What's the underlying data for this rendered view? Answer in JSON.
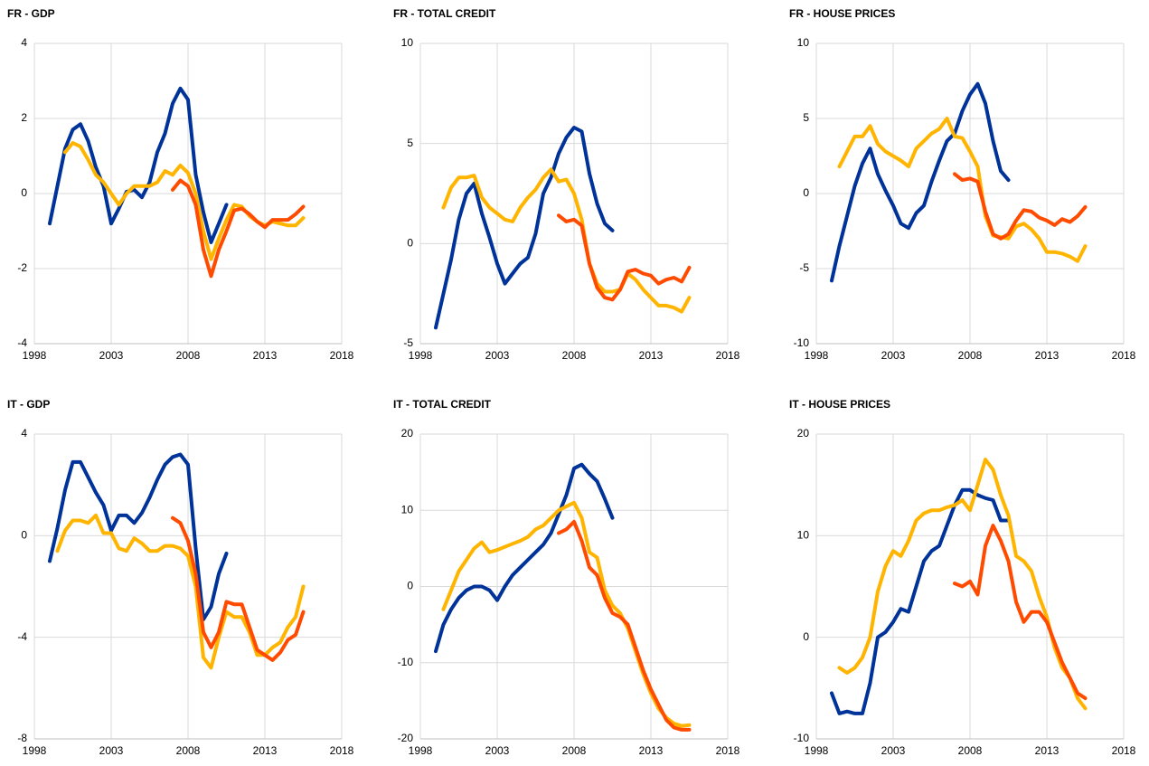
{
  "chart_data": [
    {
      "type": "line",
      "title": "FR - GDP",
      "x": [
        1999,
        1999.5,
        2000,
        2000.5,
        2001,
        2001.5,
        2002,
        2002.5,
        2003,
        2003.5,
        2004,
        2004.5,
        2005,
        2005.5,
        2006,
        2006.5,
        2007,
        2007.5,
        2008,
        2008.5,
        2009,
        2009.5,
        2010,
        2010.5,
        2011,
        2011.5,
        2012,
        2012.5,
        2013,
        2013.5,
        2014,
        2014.5,
        2015,
        2015.5
      ],
      "xlim": [
        1998,
        2018
      ],
      "xticks": [
        1998,
        2003,
        2008,
        2013,
        2018
      ],
      "ylim": [
        -4,
        4
      ],
      "yticks": [
        -4,
        -2,
        0,
        2,
        4
      ],
      "grid": true,
      "series": [
        {
          "color": "#003399",
          "values": [
            -0.8,
            0.2,
            1.2,
            1.7,
            1.85,
            1.4,
            0.7,
            0.2,
            -0.8,
            -0.4,
            0.05,
            0.1,
            -0.1,
            0.3,
            1.1,
            1.6,
            2.4,
            2.8,
            2.5,
            0.5,
            -0.5,
            -1.3,
            -0.8,
            -0.3,
            null,
            null,
            null,
            null,
            null,
            null,
            null,
            null,
            null,
            null
          ]
        },
        {
          "color": "#ffb400",
          "values": [
            null,
            null,
            1.1,
            1.35,
            1.25,
            0.9,
            0.5,
            0.3,
            0,
            -0.3,
            0,
            0.2,
            0.2,
            0.2,
            0.3,
            0.6,
            0.5,
            0.75,
            0.55,
            0,
            -1,
            -1.75,
            -1.2,
            -0.7,
            -0.3,
            -0.35,
            -0.6,
            -0.75,
            -0.85,
            -0.75,
            -0.8,
            -0.85,
            -0.85,
            -0.65
          ]
        },
        {
          "color": "#ff4b00",
          "values": [
            null,
            null,
            null,
            null,
            null,
            null,
            null,
            null,
            null,
            null,
            null,
            null,
            null,
            null,
            null,
            null,
            0.1,
            0.35,
            0.2,
            -0.3,
            -1.5,
            -2.2,
            -1.5,
            -1,
            -0.45,
            -0.4,
            -0.55,
            -0.75,
            -0.9,
            -0.7,
            -0.7,
            -0.7,
            -0.55,
            -0.35
          ]
        }
      ]
    },
    {
      "type": "line",
      "title": "FR - TOTAL CREDIT",
      "x": [
        1999,
        1999.5,
        2000,
        2000.5,
        2001,
        2001.5,
        2002,
        2002.5,
        2003,
        2003.5,
        2004,
        2004.5,
        2005,
        2005.5,
        2006,
        2006.5,
        2007,
        2007.5,
        2008,
        2008.5,
        2009,
        2009.5,
        2010,
        2010.5,
        2011,
        2011.5,
        2012,
        2012.5,
        2013,
        2013.5,
        2014,
        2014.5,
        2015,
        2015.5
      ],
      "xlim": [
        1998,
        2018
      ],
      "xticks": [
        1998,
        2003,
        2008,
        2013,
        2018
      ],
      "ylim": [
        -5,
        10
      ],
      "yticks": [
        -5,
        0,
        5,
        10
      ],
      "grid": true,
      "series": [
        {
          "color": "#003399",
          "values": [
            -4.2,
            -2.5,
            -0.8,
            1.2,
            2.5,
            3.0,
            1.5,
            0.3,
            -1.0,
            -2.0,
            -1.5,
            -1.0,
            -0.7,
            0.5,
            2.5,
            3.3,
            4.5,
            5.3,
            5.8,
            5.6,
            3.5,
            2.0,
            1.0,
            0.65,
            null,
            null,
            null,
            null,
            null,
            null,
            null,
            null,
            null,
            null
          ]
        },
        {
          "color": "#ffb400",
          "values": [
            null,
            1.8,
            2.8,
            3.3,
            3.3,
            3.4,
            2.3,
            1.8,
            1.5,
            1.2,
            1.1,
            1.8,
            2.3,
            2.7,
            3.3,
            3.7,
            3.1,
            3.2,
            2.5,
            1.2,
            -1.0,
            -2.0,
            -2.4,
            -2.4,
            -2.3,
            -1.5,
            -1.8,
            -2.3,
            -2.7,
            -3.1,
            -3.1,
            -3.2,
            -3.4,
            -2.7
          ]
        },
        {
          "color": "#ff4b00",
          "values": [
            null,
            null,
            null,
            null,
            null,
            null,
            null,
            null,
            null,
            null,
            null,
            null,
            null,
            null,
            null,
            null,
            1.4,
            1.1,
            1.2,
            0.9,
            -1.0,
            -2.2,
            -2.7,
            -2.8,
            -2.3,
            -1.4,
            -1.3,
            -1.5,
            -1.6,
            -2.0,
            -1.8,
            -1.7,
            -1.9,
            -1.2
          ]
        }
      ]
    },
    {
      "type": "line",
      "title": "FR - HOUSE PRICES",
      "x": [
        1999,
        1999.5,
        2000,
        2000.5,
        2001,
        2001.5,
        2002,
        2002.5,
        2003,
        2003.5,
        2004,
        2004.5,
        2005,
        2005.5,
        2006,
        2006.5,
        2007,
        2007.5,
        2008,
        2008.5,
        2009,
        2009.5,
        2010,
        2010.5,
        2011,
        2011.5,
        2012,
        2012.5,
        2013,
        2013.5,
        2014,
        2014.5,
        2015,
        2015.5
      ],
      "xlim": [
        1998,
        2018
      ],
      "xticks": [
        1998,
        2003,
        2008,
        2013,
        2018
      ],
      "ylim": [
        -10,
        10
      ],
      "yticks": [
        -10,
        -5,
        0,
        5,
        10
      ],
      "grid": true,
      "series": [
        {
          "color": "#003399",
          "values": [
            -5.8,
            -3.5,
            -1.5,
            0.5,
            2.0,
            3.0,
            1.3,
            0.2,
            -0.8,
            -2.0,
            -2.3,
            -1.3,
            -0.8,
            0.8,
            2.2,
            3.5,
            4.0,
            5.5,
            6.6,
            7.3,
            6.0,
            3.5,
            1.5,
            0.9,
            null,
            null,
            null,
            null,
            null,
            null,
            null,
            null,
            null,
            null
          ]
        },
        {
          "color": "#ffb400",
          "values": [
            null,
            1.8,
            2.8,
            3.8,
            3.8,
            4.5,
            3.3,
            2.8,
            2.5,
            2.2,
            1.8,
            3.0,
            3.5,
            4.0,
            4.3,
            5.0,
            3.8,
            3.7,
            2.8,
            1.8,
            -1.5,
            -2.8,
            -2.9,
            -3.0,
            -2.2,
            -2.0,
            -2.4,
            -3.0,
            -3.9,
            -3.9,
            -4.0,
            -4.2,
            -4.5,
            -3.5
          ]
        },
        {
          "color": "#ff4b00",
          "values": [
            null,
            null,
            null,
            null,
            null,
            null,
            null,
            null,
            null,
            null,
            null,
            null,
            null,
            null,
            null,
            null,
            1.3,
            0.9,
            1.0,
            0.8,
            -1.2,
            -2.7,
            -3.0,
            -2.7,
            -1.8,
            -1.1,
            -1.2,
            -1.6,
            -1.8,
            -2.1,
            -1.7,
            -1.9,
            -1.5,
            -0.9
          ]
        }
      ]
    },
    {
      "type": "line",
      "title": "IT - GDP",
      "x": [
        1999,
        1999.5,
        2000,
        2000.5,
        2001,
        2001.5,
        2002,
        2002.5,
        2003,
        2003.5,
        2004,
        2004.5,
        2005,
        2005.5,
        2006,
        2006.5,
        2007,
        2007.5,
        2008,
        2008.5,
        2009,
        2009.5,
        2010,
        2010.5,
        2011,
        2011.5,
        2012,
        2012.5,
        2013,
        2013.5,
        2014,
        2014.5,
        2015,
        2015.5
      ],
      "xlim": [
        1998,
        2018
      ],
      "xticks": [
        1998,
        2003,
        2008,
        2013,
        2018
      ],
      "ylim": [
        -8,
        4
      ],
      "yticks": [
        -8,
        -4,
        0,
        4
      ],
      "grid": true,
      "series": [
        {
          "color": "#003399",
          "values": [
            -1.0,
            0.3,
            1.8,
            2.9,
            2.9,
            2.3,
            1.7,
            1.2,
            0.2,
            0.8,
            0.8,
            0.5,
            0.9,
            1.5,
            2.2,
            2.8,
            3.1,
            3.2,
            2.8,
            -0.5,
            -3.3,
            -2.8,
            -1.5,
            -0.7,
            null,
            null,
            null,
            null,
            null,
            null,
            null,
            null,
            null,
            null
          ]
        },
        {
          "color": "#ffb400",
          "values": [
            null,
            -0.6,
            0.2,
            0.6,
            0.6,
            0.5,
            0.8,
            0.1,
            0.1,
            -0.5,
            -0.6,
            -0.1,
            -0.3,
            -0.6,
            -0.6,
            -0.4,
            -0.4,
            -0.5,
            -0.8,
            -2.0,
            -4.8,
            -5.2,
            -4.0,
            -3.0,
            -3.2,
            -3.2,
            -3.8,
            -4.7,
            -4.7,
            -4.4,
            -4.2,
            -3.6,
            -3.2,
            -2.0
          ]
        },
        {
          "color": "#ff4b00",
          "values": [
            null,
            null,
            null,
            null,
            null,
            null,
            null,
            null,
            null,
            null,
            null,
            null,
            null,
            null,
            null,
            null,
            0.7,
            0.5,
            -0.2,
            -1.5,
            -3.8,
            -4.4,
            -3.8,
            -2.6,
            -2.7,
            -2.7,
            -3.6,
            -4.5,
            -4.7,
            -4.9,
            -4.6,
            -4.1,
            -3.9,
            -3.0
          ]
        }
      ]
    },
    {
      "type": "line",
      "title": "IT - TOTAL CREDIT",
      "x": [
        1999,
        1999.5,
        2000,
        2000.5,
        2001,
        2001.5,
        2002,
        2002.5,
        2003,
        2003.5,
        2004,
        2004.5,
        2005,
        2005.5,
        2006,
        2006.5,
        2007,
        2007.5,
        2008,
        2008.5,
        2009,
        2009.5,
        2010,
        2010.5,
        2011,
        2011.5,
        2012,
        2012.5,
        2013,
        2013.5,
        2014,
        2014.5,
        2015,
        2015.5
      ],
      "xlim": [
        1998,
        2018
      ],
      "xticks": [
        1998,
        2003,
        2008,
        2013,
        2018
      ],
      "ylim": [
        -20,
        20
      ],
      "yticks": [
        -20,
        -10,
        0,
        10,
        20
      ],
      "grid": true,
      "series": [
        {
          "color": "#003399",
          "values": [
            -8.5,
            -5.0,
            -3.0,
            -1.5,
            -0.5,
            0,
            0,
            -0.5,
            -1.8,
            0,
            1.5,
            2.5,
            3.5,
            4.5,
            5.5,
            7.0,
            9.5,
            12.0,
            15.5,
            16.0,
            14.8,
            13.8,
            11.5,
            9.0,
            null,
            null,
            null,
            null,
            null,
            null,
            null,
            null,
            null,
            null
          ]
        },
        {
          "color": "#ffb400",
          "values": [
            null,
            -3.0,
            -0.5,
            2.0,
            3.5,
            5.0,
            5.8,
            4.5,
            4.8,
            5.2,
            5.6,
            6.0,
            6.5,
            7.5,
            8.0,
            9.0,
            10.0,
            10.5,
            11.0,
            9.0,
            4.5,
            3.8,
            -0.5,
            -2.5,
            -3.5,
            -5.5,
            -8.5,
            -11.5,
            -14.0,
            -16.0,
            -17.2,
            -18.0,
            -18.3,
            -18.2
          ]
        },
        {
          "color": "#ff4b00",
          "values": [
            null,
            null,
            null,
            null,
            null,
            null,
            null,
            null,
            null,
            null,
            null,
            null,
            null,
            null,
            null,
            null,
            7.0,
            7.5,
            8.5,
            6.0,
            2.5,
            1.5,
            -1.5,
            -3.5,
            -4.0,
            -5.0,
            -8.0,
            -11.0,
            -13.5,
            -15.5,
            -17.5,
            -18.5,
            -18.8,
            -18.8
          ]
        }
      ]
    },
    {
      "type": "line",
      "title": "IT - HOUSE PRICES",
      "x": [
        1999,
        1999.5,
        2000,
        2000.5,
        2001,
        2001.5,
        2002,
        2002.5,
        2003,
        2003.5,
        2004,
        2004.5,
        2005,
        2005.5,
        2006,
        2006.5,
        2007,
        2007.5,
        2008,
        2008.5,
        2009,
        2009.5,
        2010,
        2010.5,
        2011,
        2011.5,
        2012,
        2012.5,
        2013,
        2013.5,
        2014,
        2014.5,
        2015,
        2015.5
      ],
      "xlim": [
        1998,
        2018
      ],
      "xticks": [
        1998,
        2003,
        2008,
        2013,
        2018
      ],
      "ylim": [
        -10,
        20
      ],
      "yticks": [
        -10,
        0,
        10,
        20
      ],
      "grid": true,
      "series": [
        {
          "color": "#003399",
          "values": [
            -5.5,
            -7.5,
            -7.3,
            -7.5,
            -7.5,
            -4.5,
            0,
            0.5,
            1.5,
            2.8,
            2.5,
            5.0,
            7.5,
            8.5,
            9.0,
            11.0,
            13.0,
            14.5,
            14.5,
            14.0,
            13.7,
            13.5,
            11.5,
            11.5,
            null,
            null,
            null,
            null,
            null,
            null,
            null,
            null,
            null,
            null
          ]
        },
        {
          "color": "#ffb400",
          "values": [
            null,
            -3.0,
            -3.5,
            -3.0,
            -2.0,
            0,
            4.5,
            7.0,
            8.5,
            8.0,
            9.5,
            11.5,
            12.2,
            12.5,
            12.5,
            12.8,
            13.0,
            13.5,
            12.5,
            15.0,
            17.5,
            16.5,
            14.0,
            12.0,
            8.0,
            7.5,
            6.5,
            4.0,
            2.0,
            -1.0,
            -3.0,
            -4.0,
            -6.0,
            -7.0
          ]
        },
        {
          "color": "#ff4b00",
          "values": [
            null,
            null,
            null,
            null,
            null,
            null,
            null,
            null,
            null,
            null,
            null,
            null,
            null,
            null,
            null,
            null,
            5.3,
            5.0,
            5.5,
            4.2,
            9.0,
            11.0,
            9.5,
            7.5,
            3.5,
            1.5,
            2.5,
            2.5,
            1.5,
            -0.5,
            -2.5,
            -4.0,
            -5.5,
            -6.0
          ]
        }
      ]
    }
  ]
}
